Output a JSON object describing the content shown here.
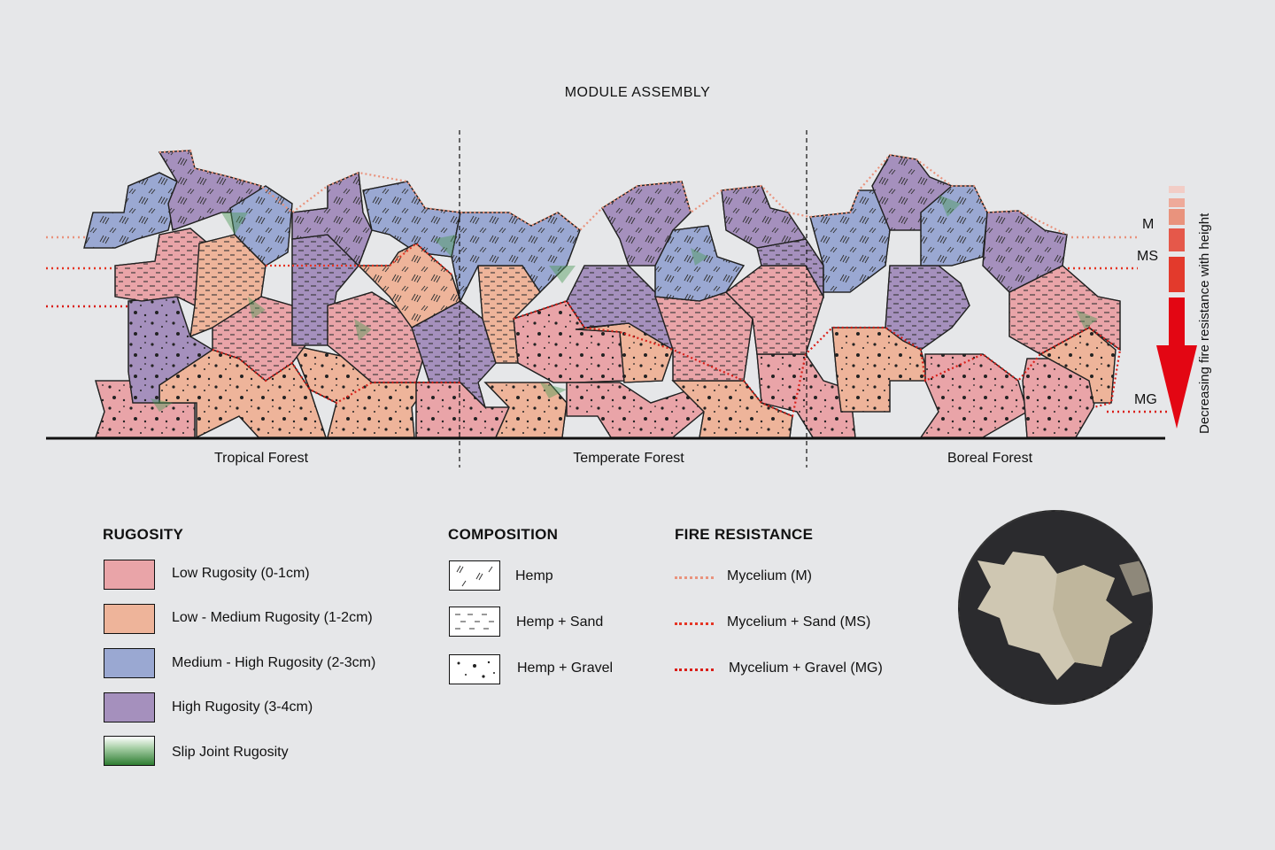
{
  "title": "MODULE ASSEMBLY",
  "biomes": [
    "Tropical Forest",
    "Temperate Forest",
    "Boreal Forest"
  ],
  "levels": {
    "m": "M",
    "ms": "MS",
    "mg": "MG"
  },
  "arrow_label": "Decreasing fire resistance with height",
  "legend": {
    "rugosity": {
      "heading": "RUGOSITY",
      "items": [
        {
          "label": "Low Rugosity (0-1cm)",
          "color": "#e9a4a8"
        },
        {
          "label": "Low - Medium Rugosity (1-2cm)",
          "color": "#eeb49a"
        },
        {
          "label": "Medium - High Rugosity (2-3cm)",
          "color": "#9aa8d2"
        },
        {
          "label": "High Rugosity (3-4cm)",
          "color": "#a590bd"
        },
        {
          "label": "Slip Joint Rugosity",
          "color": "#2e7d32"
        }
      ]
    },
    "composition": {
      "heading": "COMPOSITION",
      "items": [
        {
          "label": "Hemp",
          "pattern": "slashes"
        },
        {
          "label": "Hemp + Sand",
          "pattern": "dashes"
        },
        {
          "label": "Hemp + Gravel",
          "pattern": "dots"
        }
      ]
    },
    "fire": {
      "heading": "FIRE RESISTANCE",
      "items": [
        {
          "label": "Mycelium (M)",
          "color": "#e9937d"
        },
        {
          "label": "Mycelium + Sand (MS)",
          "color": "#e53524"
        },
        {
          "label": "Mycelium + Gravel (MG)",
          "color": "#d91e18"
        }
      ]
    }
  },
  "colors": {
    "arrow": "#e30613",
    "background": "#e6e7e9"
  }
}
